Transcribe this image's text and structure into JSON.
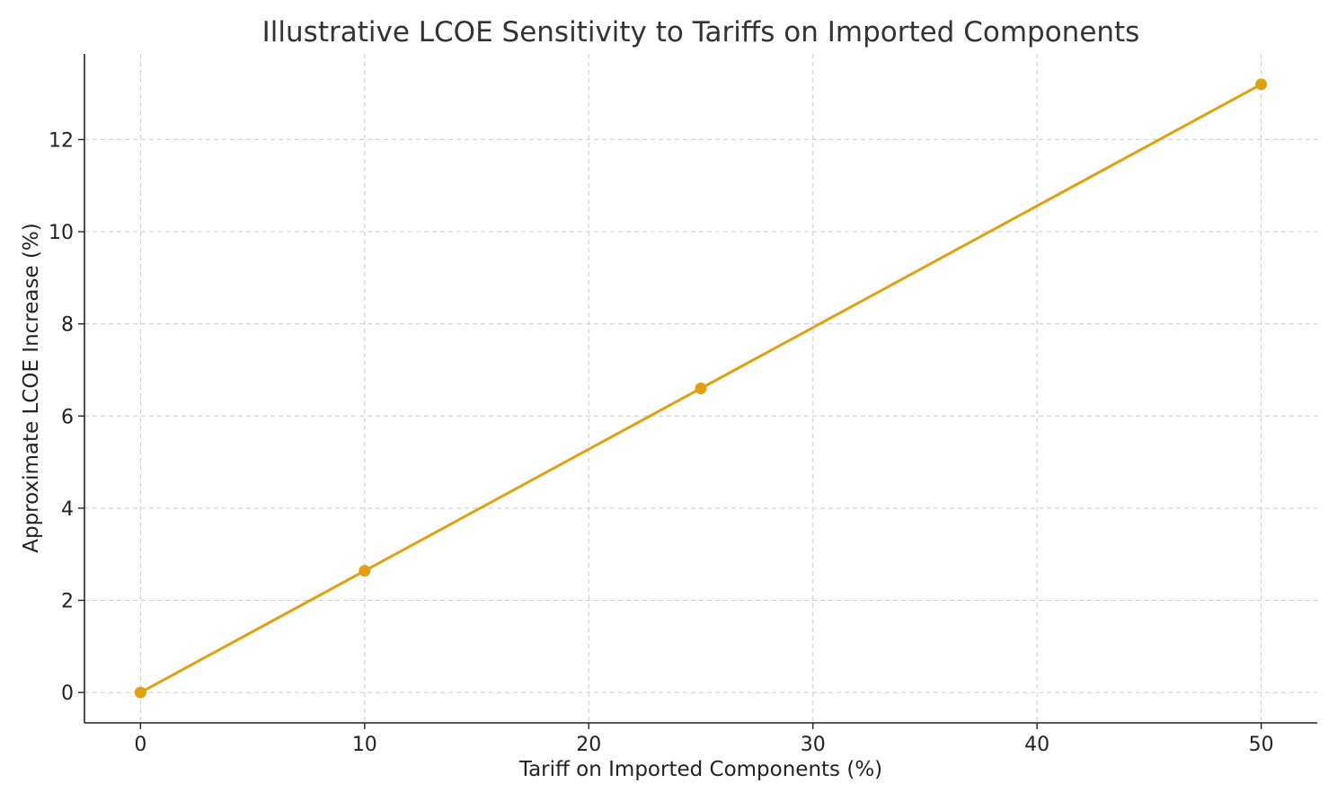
{
  "chart_data": {
    "type": "line",
    "title": "Illustrative LCOE Sensitivity to Tariffs on Imported Components",
    "xlabel": "Tariff on Imported Components (%)",
    "ylabel": "Approximate LCOE Increase (%)",
    "xlim": [
      -2.5,
      52.5
    ],
    "ylim": [
      -0.66,
      13.86
    ],
    "xticks": [
      0,
      10,
      20,
      30,
      40,
      50
    ],
    "yticks": [
      0,
      2,
      4,
      6,
      8,
      10,
      12
    ],
    "grid": true,
    "legend": "none",
    "series": [
      {
        "color": "#e0a010",
        "marker": "circle",
        "x": [
          0,
          10,
          25,
          50
        ],
        "y": [
          0,
          2.64,
          6.6,
          13.2
        ]
      }
    ]
  }
}
